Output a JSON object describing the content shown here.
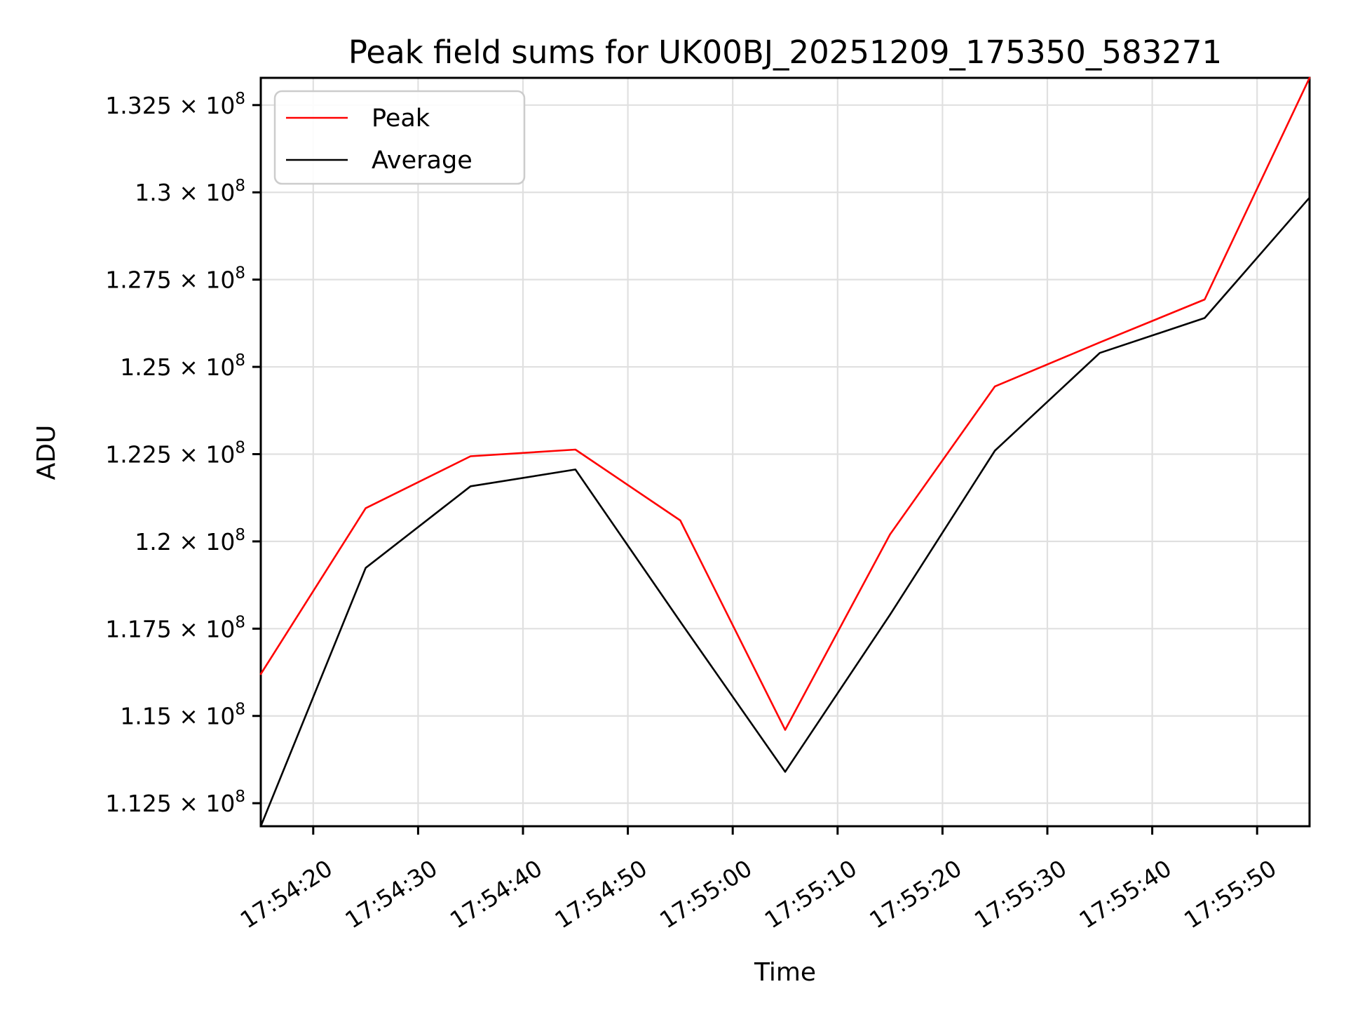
{
  "figure": {
    "background": "#ffffff",
    "accent_color": "#ff0000",
    "grid_color": "#e0e0e0",
    "spine_color": "#000000",
    "legend_border_color": "#cccccc"
  },
  "chart_data": {
    "type": "line",
    "title": "Peak field sums for UK00BJ_20251209_175350_583271",
    "xlabel": "Time",
    "ylabel": "ADU",
    "grid": true,
    "legend_position": "upper left",
    "x_unit": "seconds after 17:54:15",
    "x": [
      0,
      10,
      20,
      30,
      40,
      50,
      60,
      70,
      80,
      90,
      100
    ],
    "x_times": [
      "17:54:15",
      "17:54:25",
      "17:54:35",
      "17:54:45",
      "17:54:55",
      "17:55:05",
      "17:55:15",
      "17:55:25",
      "17:55:35",
      "17:55:45",
      "17:55:55"
    ],
    "series": [
      {
        "name": "Peak",
        "color": "#ff0000",
        "values": [
          116200000,
          120950000,
          122440000,
          122630000,
          120600000,
          114600000,
          120200000,
          124440000,
          125700000,
          126930000,
          133280000
        ]
      },
      {
        "name": "Average",
        "color": "#000000",
        "values": [
          111840000,
          119240000,
          121580000,
          122060000,
          117700000,
          113400000,
          117900000,
          122600000,
          125400000,
          126400000,
          129850000
        ]
      }
    ],
    "xlim_s": [
      0,
      100
    ],
    "ylim": [
      111840000,
      133280000
    ],
    "x_ticks": {
      "positions_s": [
        5,
        15,
        25,
        35,
        45,
        55,
        65,
        75,
        85,
        95
      ],
      "labels": [
        "17:54:20",
        "17:54:30",
        "17:54:40",
        "17:54:50",
        "17:55:00",
        "17:55:10",
        "17:55:20",
        "17:55:30",
        "17:55:40",
        "17:55:50"
      ]
    },
    "y_ticks": {
      "values": [
        112500000,
        115000000,
        117500000,
        120000000,
        122500000,
        125000000,
        127500000,
        130000000,
        132500000
      ],
      "labels": [
        {
          "base": "1.125 × 10",
          "exp": "8"
        },
        {
          "base": "1.15 × 10",
          "exp": "8"
        },
        {
          "base": "1.175 × 10",
          "exp": "8"
        },
        {
          "base": "1.2 × 10",
          "exp": "8"
        },
        {
          "base": "1.225 × 10",
          "exp": "8"
        },
        {
          "base": "1.25 × 10",
          "exp": "8"
        },
        {
          "base": "1.275 × 10",
          "exp": "8"
        },
        {
          "base": "1.3 × 10",
          "exp": "8"
        },
        {
          "base": "1.325 × 10",
          "exp": "8"
        }
      ]
    },
    "legend": {
      "entries": [
        {
          "label": "Peak",
          "color": "#ff0000"
        },
        {
          "label": "Average",
          "color": "#000000"
        }
      ]
    }
  }
}
